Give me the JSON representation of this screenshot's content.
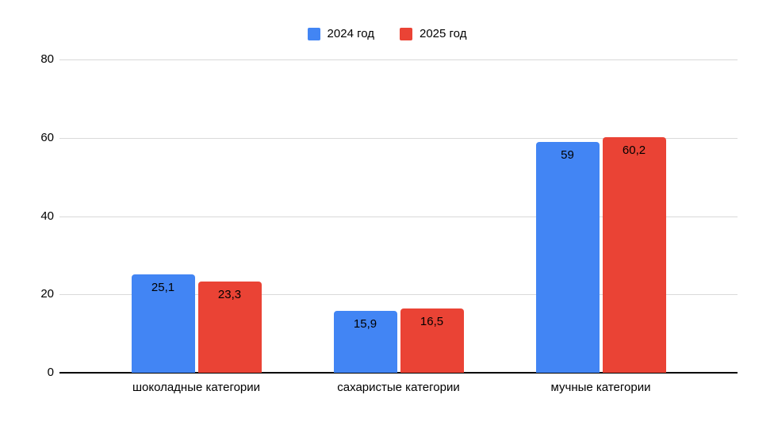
{
  "chart_data": {
    "type": "bar",
    "title": "",
    "xlabel": "",
    "ylabel": "",
    "categories": [
      "шоколадные категории",
      "сахаристые категории",
      "мучные категории"
    ],
    "series": [
      {
        "name": "2024 год",
        "color": "#4285F4",
        "values": [
          25.1,
          15.9,
          59
        ],
        "labels": [
          "25,1",
          "15,9",
          "59"
        ]
      },
      {
        "name": "2025 год",
        "color": "#EA4335",
        "values": [
          23.3,
          16.5,
          60.2
        ],
        "labels": [
          "23,3",
          "16,5",
          "60,2"
        ]
      }
    ],
    "ylim": [
      0,
      80
    ],
    "yticks": [
      0,
      20,
      40,
      60,
      80
    ],
    "grid": true,
    "legend_position": "top"
  },
  "colors": {
    "bar_blue": "#4285F4",
    "bar_red": "#EA4335",
    "gridline": "#d9d9d9",
    "axis": "#000000",
    "text": "#000000",
    "background": "#ffffff"
  }
}
